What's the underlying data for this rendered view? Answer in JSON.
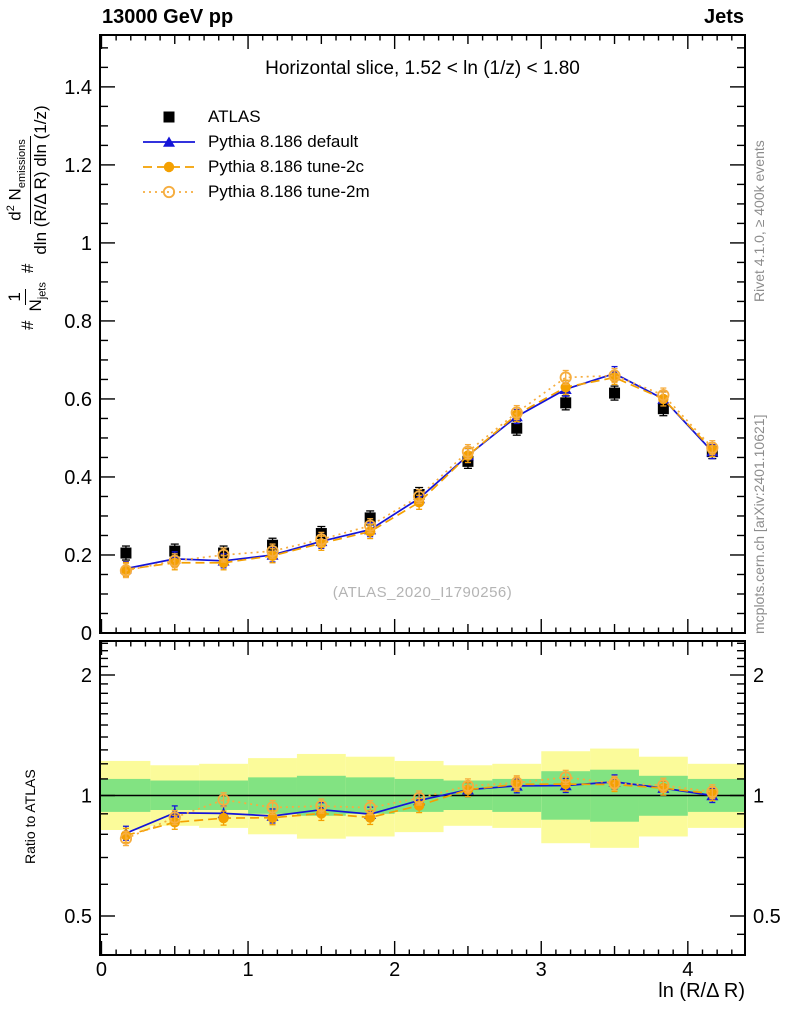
{
  "header": {
    "left": "13000 GeV pp",
    "right": "Jets"
  },
  "title": "Horizontal slice, 1.52 < ln (1/z) < 1.80",
  "watermark": "(ATLAS_2020_I1790256)",
  "notes": {
    "rivet": "Rivet 4.1.0, ≥ 400k events",
    "mcplots": "mcplots.cern.ch [arXiv:2401.10621]"
  },
  "axes": {
    "x_title": "ln (R/Δ R)",
    "ratio_label": "Ratio to ATLAS",
    "x_ticks": [
      "0",
      "1",
      "2",
      "3",
      "4"
    ],
    "y_ticks": [
      "0",
      "0.2",
      "0.4",
      "0.6",
      "0.8",
      "1",
      "1.2",
      "1.4"
    ],
    "ratio_ticks": [
      "0.5",
      "1",
      "2"
    ],
    "y_label": {
      "hash1": "#",
      "frac1_num": "1",
      "frac1_den": "N",
      "frac1_den_sub": "jets",
      "hash2": "#",
      "frac2_num_a": "d",
      "frac2_num_sup": "2",
      "frac2_num_b": " N",
      "frac2_num_sub": "emissions",
      "frac2_den": "dln (R/Δ R) dln (1/z)"
    }
  },
  "colors": {
    "atlas": "#000000",
    "pythia_default": "#1414d8",
    "pythia_2c": "#f4a001",
    "pythia_2m": "#f6ad3f",
    "band_yellow": "#fbfb9a",
    "band_green": "#82e382",
    "gray_text": "#8c8c8c"
  },
  "chart_data": {
    "type": "line",
    "title": "Horizontal slice, 1.52 < ln (1/z) < 1.80",
    "xlabel": "ln (R/Δ R)",
    "ylabel": "1/N_jets d^2 N_emissions / dln(R/ΔR) dln(1/z)",
    "xlim": [
      -0.01,
      4.39
    ],
    "ylim": [
      0,
      1.533
    ],
    "ratio_ylim": [
      0.4,
      2.43
    ],
    "ratio_scale": "log2",
    "grid": false,
    "legend_position": "top-left",
    "x": [
      0.167,
      0.5,
      0.833,
      1.167,
      1.5,
      1.833,
      2.167,
      2.5,
      2.833,
      3.167,
      3.5,
      3.833,
      4.167
    ],
    "bin_half_width": 0.1667,
    "x_tick_values": [
      0,
      1,
      2,
      3,
      4
    ],
    "y_tick_values": [
      0,
      0.2,
      0.4,
      0.6,
      0.8,
      1.0,
      1.2,
      1.4
    ],
    "ratio_tick_values": [
      0.5,
      1,
      2
    ],
    "series": [
      {
        "name": "ATLAS",
        "color": "#000000",
        "marker": "square",
        "line": "none",
        "values": [
          0.205,
          0.21,
          0.205,
          0.225,
          0.255,
          0.295,
          0.355,
          0.44,
          0.525,
          0.59,
          0.615,
          0.575,
          0.465
        ]
      },
      {
        "name": "Pythia 8.186 default",
        "color": "#1414d8",
        "marker": "triangle",
        "line": "solid",
        "values": [
          0.165,
          0.19,
          0.185,
          0.2,
          0.235,
          0.265,
          0.345,
          0.455,
          0.555,
          0.625,
          0.665,
          0.6,
          0.465
        ]
      },
      {
        "name": "Pythia 8.186 tune-2c",
        "color": "#f4a001",
        "marker": "circle",
        "line": "dashed",
        "values": [
          0.163,
          0.18,
          0.18,
          0.198,
          0.23,
          0.26,
          0.335,
          0.455,
          0.56,
          0.63,
          0.655,
          0.6,
          0.47
        ]
      },
      {
        "name": "Pythia 8.186 tune-2m",
        "color": "#f6ad3f",
        "marker": "circle-open",
        "line": "dotted",
        "values": [
          0.16,
          0.185,
          0.2,
          0.21,
          0.24,
          0.275,
          0.35,
          0.465,
          0.565,
          0.655,
          0.66,
          0.61,
          0.475
        ]
      }
    ],
    "ratio_bands": {
      "yellow_hi": [
        1.22,
        1.19,
        1.2,
        1.24,
        1.27,
        1.25,
        1.22,
        1.19,
        1.2,
        1.29,
        1.31,
        1.25,
        1.2
      ],
      "yellow_lo": [
        0.82,
        0.84,
        0.83,
        0.8,
        0.78,
        0.79,
        0.81,
        0.84,
        0.83,
        0.76,
        0.74,
        0.79,
        0.83
      ],
      "green_hi": [
        1.1,
        1.09,
        1.09,
        1.11,
        1.12,
        1.11,
        1.1,
        1.09,
        1.1,
        1.15,
        1.16,
        1.12,
        1.1
      ],
      "green_lo": [
        0.91,
        0.92,
        0.92,
        0.9,
        0.89,
        0.9,
        0.91,
        0.92,
        0.91,
        0.87,
        0.86,
        0.89,
        0.91
      ]
    }
  }
}
